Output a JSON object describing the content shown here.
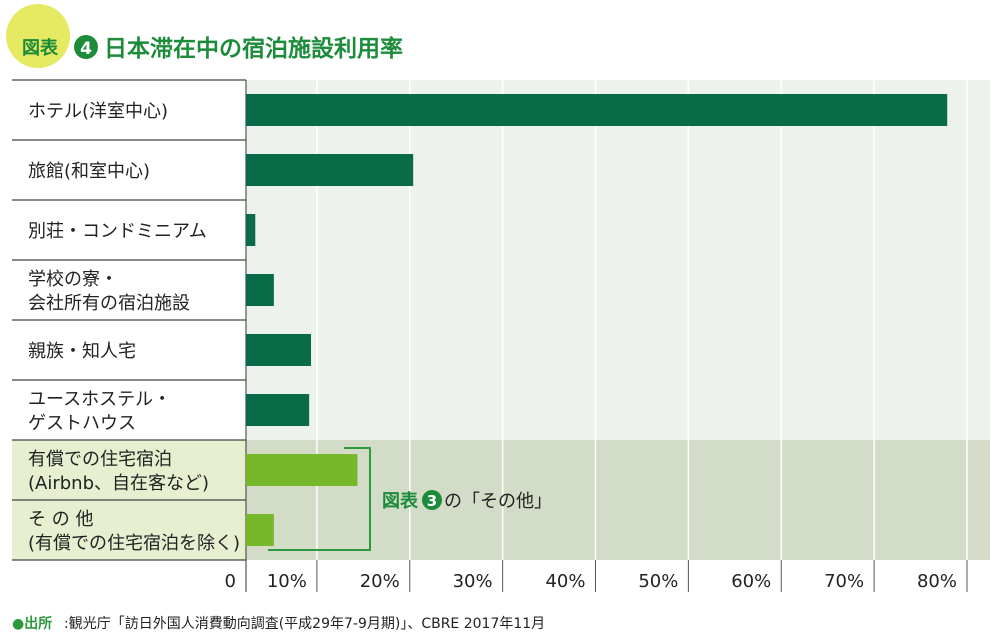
{
  "figure": {
    "tag_label": "図表",
    "tag_number": "4",
    "title": "日本滞在中の宿泊施設利用率"
  },
  "colors": {
    "bar_main": "#0a6b48",
    "bar_highlight": "#77b82a",
    "bracket": "#2c9a3c",
    "tag_circle": "#e6ea63",
    "title_green": "#1d8c3a",
    "highlight_bg_plot": "#d3dcc6",
    "highlight_bg_label": "#e6efcf"
  },
  "chart_data": {
    "type": "bar",
    "orientation": "horizontal",
    "categories": [
      [
        "ホテル(洋室中心)"
      ],
      [
        "旅館(和室中心)"
      ],
      [
        "別荘・コンドミニアム"
      ],
      [
        "学校の寮・",
        "会社所有の宿泊施設"
      ],
      [
        "親族・知人宅"
      ],
      [
        "ユースホステル・",
        "ゲストハウス"
      ],
      [
        "有償での住宅宿泊",
        "(Airbnb、自在客など)"
      ],
      [
        "そ の 他",
        "(有償での住宅宿泊を除く)"
      ]
    ],
    "values": [
      75.5,
      18.0,
      1.0,
      3.0,
      7.0,
      6.8,
      12.0,
      3.0
    ],
    "highlight": [
      false,
      false,
      false,
      false,
      false,
      false,
      true,
      true
    ],
    "xlim": [
      0,
      80
    ],
    "xticks": [
      "0",
      "10%",
      "20%",
      "30%",
      "40%",
      "50%",
      "60%",
      "70%",
      "80%"
    ],
    "grid": true,
    "annotation": {
      "label": "図表",
      "number": "3",
      "suffix": "の「その他」"
    }
  },
  "source": {
    "label": "●出所",
    "text": ":観光庁「訪日外国人消費動向調査(平成29年7-9月期)」、CBRE 2017年11月"
  }
}
